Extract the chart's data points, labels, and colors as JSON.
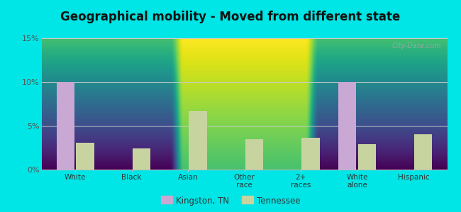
{
  "title": "Geographical mobility - Moved from different state",
  "categories": [
    "White",
    "Black",
    "Asian",
    "Other\nrace",
    "2+\nraces",
    "White\nalone",
    "Hispanic"
  ],
  "kingston_values": [
    10.0,
    0,
    0,
    0,
    0,
    10.0,
    0
  ],
  "tennessee_values": [
    3.1,
    2.4,
    6.7,
    3.5,
    3.6,
    2.9,
    4.0
  ],
  "kingston_color": "#c9a8d4",
  "tennessee_color": "#c8d4a0",
  "ylim": [
    0,
    0.15
  ],
  "yticks": [
    0,
    0.05,
    0.1,
    0.15
  ],
  "ytick_labels": [
    "0%",
    "5%",
    "10%",
    "15%"
  ],
  "bg_top_color": "#f5fef5",
  "bg_bottom_color": "#dff5df",
  "outer_background": "#00e5e5",
  "grid_color": "#cccccc",
  "title_fontsize": 12,
  "legend_labels": [
    "Kingston, TN",
    "Tennessee"
  ],
  "watermark": "City-Data.com"
}
